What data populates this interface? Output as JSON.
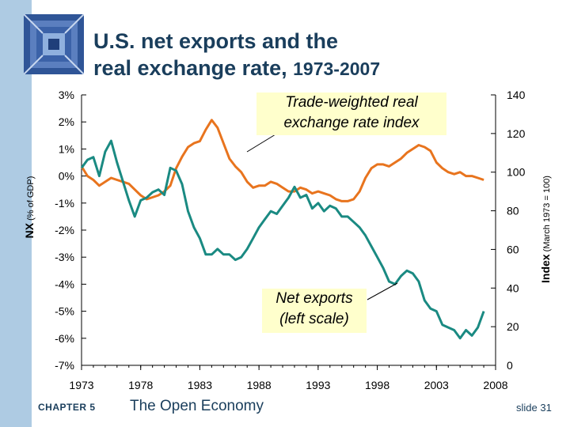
{
  "slide": {
    "title_line1": "U.S. net exports and the",
    "title_line2": "real exchange rate, ",
    "title_years": "1973-2007",
    "chapter_label": "CHAPTER 5",
    "chapter_topic": "The Open Economy",
    "slide_number": "slide 31"
  },
  "chart_data": {
    "type": "line",
    "title": "U.S. net exports and the real exchange rate, 1973-2007",
    "xlabel": "",
    "x_ticks": [
      "1973",
      "1978",
      "1983",
      "1988",
      "1993",
      "1998",
      "2003",
      "2008"
    ],
    "xlim": [
      1973,
      2008
    ],
    "left_axis": {
      "label_main": "NX",
      "label_sub": " (% of GDP)",
      "range": [
        -7,
        3
      ],
      "ticks": [
        "3%",
        "2%",
        "1%",
        "0%",
        "-1%",
        "-2%",
        "-3%",
        "-4%",
        "-5%",
        "-6%",
        "-7%"
      ]
    },
    "right_axis": {
      "label_main": "Index",
      "label_sub": " (March 1973 = 100)",
      "range": [
        0,
        140
      ],
      "ticks": [
        "140",
        "120",
        "100",
        "80",
        "60",
        "40",
        "20",
        "0"
      ]
    },
    "annotations": {
      "rate_label_line1": "Trade-weighted real",
      "rate_label_line2": "exchange rate index",
      "nx_label_line1": "Net exports",
      "nx_label_line2": "(left scale)"
    },
    "series": [
      {
        "name": "Trade-weighted real exchange rate index",
        "axis": "right",
        "color": "#e8741e",
        "x": [
          1973,
          1973.5,
          1974,
          1974.5,
          1975,
          1975.5,
          1976,
          1976.5,
          1977,
          1977.5,
          1978,
          1978.5,
          1979,
          1979.5,
          1980,
          1980.5,
          1981,
          1981.5,
          1982,
          1982.5,
          1983,
          1983.5,
          1984,
          1984.5,
          1985,
          1985.5,
          1986,
          1986.5,
          1987,
          1987.5,
          1988,
          1988.5,
          1989,
          1989.5,
          1990,
          1990.5,
          1991,
          1991.5,
          1992,
          1992.5,
          1993,
          1993.5,
          1994,
          1994.5,
          1995,
          1995.5,
          1996,
          1996.5,
          1997,
          1997.5,
          1998,
          1998.5,
          1999,
          1999.5,
          2000,
          2000.5,
          2001,
          2001.5,
          2002,
          2002.5,
          2003,
          2003.5,
          2004,
          2004.5,
          2005,
          2005.5,
          2006,
          2006.5,
          2007
        ],
        "values": [
          103,
          98,
          96,
          93,
          95,
          97,
          96,
          95,
          94,
          91,
          88,
          86,
          87,
          88,
          90,
          93,
          102,
          108,
          113,
          115,
          116,
          122,
          127,
          123,
          115,
          107,
          103,
          100,
          95,
          92,
          93,
          93,
          95,
          94,
          92,
          90,
          90,
          92,
          91,
          89,
          90,
          89,
          88,
          86,
          85,
          85,
          86,
          90,
          97,
          102,
          104,
          104,
          103,
          105,
          107,
          110,
          112,
          114,
          113,
          111,
          105,
          102,
          100,
          99,
          100,
          98,
          98,
          97,
          96
        ]
      },
      {
        "name": "Net exports",
        "axis": "left",
        "color": "#1a8a82",
        "x": [
          1973,
          1973.5,
          1974,
          1974.5,
          1975,
          1975.5,
          1976,
          1976.5,
          1977,
          1977.5,
          1978,
          1978.5,
          1979,
          1979.5,
          1980,
          1980.5,
          1981,
          1981.5,
          1982,
          1982.5,
          1983,
          1983.5,
          1984,
          1984.5,
          1985,
          1985.5,
          1986,
          1986.5,
          1987,
          1987.5,
          1988,
          1988.5,
          1989,
          1989.5,
          1990,
          1990.5,
          1991,
          1991.5,
          1992,
          1992.5,
          1993,
          1993.5,
          1994,
          1994.5,
          1995,
          1995.5,
          1996,
          1996.5,
          1997,
          1997.5,
          1998,
          1998.5,
          1999,
          1999.5,
          2000,
          2000.5,
          2001,
          2001.5,
          2002,
          2002.5,
          2003,
          2003.5,
          2004,
          2004.5,
          2005,
          2005.5,
          2006,
          2006.5,
          2007
        ],
        "values": [
          0.3,
          0.6,
          0.7,
          0.0,
          0.9,
          1.3,
          0.5,
          -0.2,
          -0.9,
          -1.5,
          -0.9,
          -0.8,
          -0.6,
          -0.5,
          -0.7,
          0.3,
          0.2,
          -0.3,
          -1.3,
          -1.9,
          -2.3,
          -2.9,
          -2.9,
          -2.7,
          -2.9,
          -2.9,
          -3.1,
          -3.0,
          -2.7,
          -2.3,
          -1.9,
          -1.6,
          -1.3,
          -1.4,
          -1.1,
          -0.8,
          -0.4,
          -0.8,
          -0.7,
          -1.2,
          -1.0,
          -1.3,
          -1.1,
          -1.2,
          -1.5,
          -1.5,
          -1.7,
          -1.9,
          -2.2,
          -2.6,
          -3.0,
          -3.4,
          -3.9,
          -4.0,
          -3.7,
          -3.5,
          -3.6,
          -3.9,
          -4.6,
          -4.9,
          -5.0,
          -5.5,
          -5.6,
          -5.7,
          -6.0,
          -5.7,
          -5.9,
          -5.6,
          -5.0
        ]
      }
    ]
  }
}
